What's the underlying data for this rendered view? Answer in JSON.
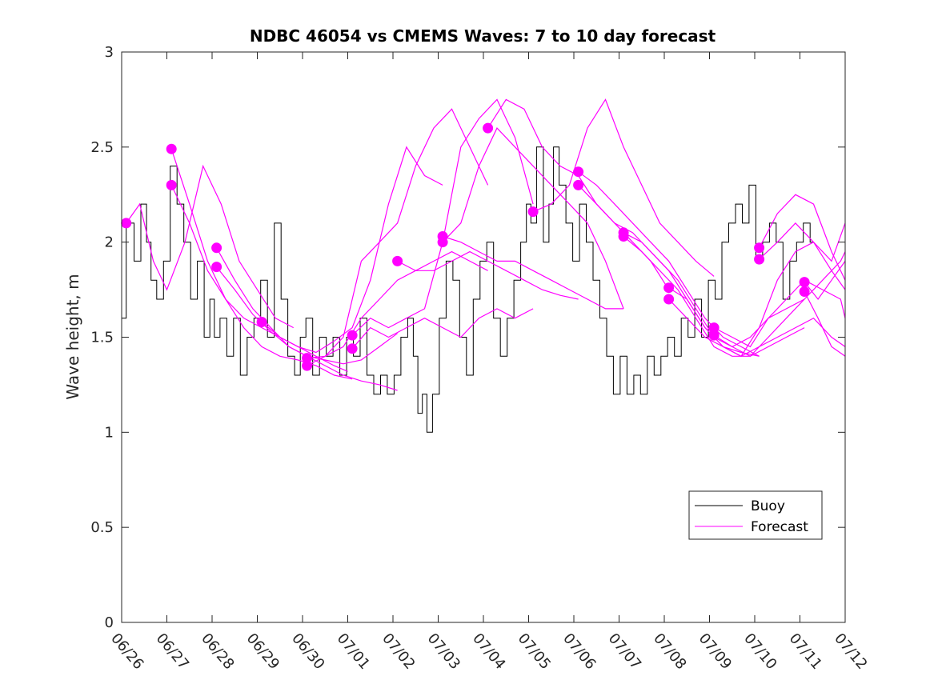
{
  "chart_data": {
    "type": "line",
    "title": "NDBC 46054 vs CMEMS Waves: 7 to 10 day forecast",
    "xlabel": "",
    "ylabel": "Wave height, m",
    "xlim": [
      0,
      16
    ],
    "ylim": [
      0,
      3
    ],
    "x_ticks": [
      "06/26",
      "06/27",
      "06/28",
      "06/29",
      "06/30",
      "07/01",
      "07/02",
      "07/03",
      "07/04",
      "07/05",
      "07/06",
      "07/07",
      "07/08",
      "07/09",
      "07/10",
      "07/11",
      "07/12"
    ],
    "y_ticks": [
      "0",
      "0.5",
      "1",
      "1.5",
      "2",
      "2.5",
      "3"
    ],
    "grid": false,
    "legend_position": "lower-right",
    "colors": {
      "buoy": "#000000",
      "forecast": "#ff00ff",
      "axis": "#262626"
    },
    "series": [
      {
        "name": "Buoy",
        "x": [
          0,
          0.2,
          0.35,
          0.5,
          0.6,
          0.7,
          0.85,
          1.0,
          1.15,
          1.3,
          1.45,
          1.6,
          1.75,
          1.9,
          2.0,
          2.1,
          2.25,
          2.4,
          2.55,
          2.7,
          2.85,
          3.0,
          3.15,
          3.3,
          3.45,
          3.6,
          3.75,
          3.9,
          4.0,
          4.15,
          4.3,
          4.45,
          4.6,
          4.75,
          4.9,
          5.05,
          5.2,
          5.35,
          5.5,
          5.65,
          5.8,
          5.95,
          6.1,
          6.25,
          6.4,
          6.5,
          6.6,
          6.7,
          6.8,
          6.95,
          7.1,
          7.25,
          7.4,
          7.55,
          7.7,
          7.85,
          8.0,
          8.15,
          8.3,
          8.45,
          8.6,
          8.75,
          8.9,
          9.0,
          9.1,
          9.25,
          9.4,
          9.5,
          9.6,
          9.75,
          9.9,
          10.05,
          10.2,
          10.35,
          10.5,
          10.65,
          10.8,
          10.95,
          11.1,
          11.25,
          11.4,
          11.55,
          11.7,
          11.85,
          12.0,
          12.15,
          12.3,
          12.45,
          12.6,
          12.75,
          12.9,
          13.05,
          13.2,
          13.35,
          13.5,
          13.65,
          13.8,
          13.95,
          14.1,
          14.25,
          14.4,
          14.55,
          14.7,
          14.85,
          15.0,
          15.15,
          15.3
        ],
        "y": [
          1.6,
          2.1,
          1.9,
          2.2,
          2.0,
          1.8,
          1.7,
          1.9,
          2.4,
          2.2,
          2.0,
          1.7,
          1.9,
          1.5,
          1.7,
          1.5,
          1.6,
          1.4,
          1.6,
          1.3,
          1.5,
          1.6,
          1.8,
          1.5,
          2.1,
          1.7,
          1.4,
          1.3,
          1.5,
          1.6,
          1.3,
          1.5,
          1.4,
          1.5,
          1.3,
          1.5,
          1.4,
          1.6,
          1.3,
          1.2,
          1.3,
          1.2,
          1.3,
          1.5,
          1.6,
          1.4,
          1.1,
          1.2,
          1.0,
          1.2,
          1.6,
          1.9,
          1.8,
          1.5,
          1.3,
          1.7,
          1.9,
          2.0,
          1.6,
          1.4,
          1.6,
          1.8,
          2.0,
          2.2,
          2.1,
          2.5,
          2.0,
          2.2,
          2.5,
          2.3,
          2.1,
          1.9,
          2.2,
          2.0,
          1.8,
          1.6,
          1.4,
          1.2,
          1.4,
          1.2,
          1.3,
          1.2,
          1.4,
          1.3,
          1.4,
          1.5,
          1.4,
          1.6,
          1.5,
          1.7,
          1.5,
          1.8,
          1.7,
          2.0,
          2.1,
          2.2,
          2.1,
          2.3,
          1.9,
          2.0,
          2.1,
          2.0,
          1.7,
          1.9,
          2.0,
          2.1,
          2.0
        ]
      },
      {
        "name": "Forecast",
        "segments": [
          {
            "x": [
              0.1,
              0.4,
              0.7,
              1.0,
              1.4,
              1.8,
              2.2,
              2.6,
              3.0,
              3.4,
              3.8
            ],
            "y": [
              2.1,
              2.2,
              1.9,
              1.75,
              2.0,
              2.4,
              2.2,
              1.9,
              1.75,
              1.6,
              1.55
            ]
          },
          {
            "x": [
              1.1,
              1.5,
              1.9,
              2.3,
              2.7,
              3.1,
              3.5,
              3.9,
              4.3,
              4.7,
              5.0
            ],
            "y": [
              2.49,
              2.2,
              1.9,
              1.7,
              1.6,
              1.55,
              1.5,
              1.45,
              1.4,
              1.35,
              1.32
            ]
          },
          {
            "x": [
              1.1,
              1.5,
              1.9,
              2.3,
              2.7,
              3.1,
              3.5,
              3.9,
              4.3,
              4.7,
              5.1
            ],
            "y": [
              2.3,
              2.1,
              1.85,
              1.7,
              1.55,
              1.45,
              1.4,
              1.38,
              1.35,
              1.3,
              1.28
            ]
          },
          {
            "x": [
              2.1,
              2.5,
              2.9,
              3.3,
              3.7,
              4.1,
              4.5,
              4.9,
              5.3,
              5.7,
              6.1
            ],
            "y": [
              1.97,
              1.8,
              1.65,
              1.55,
              1.45,
              1.4,
              1.35,
              1.3,
              1.27,
              1.25,
              1.22
            ]
          },
          {
            "x": [
              2.1,
              2.5,
              2.9,
              3.3,
              3.7,
              4.1,
              4.5,
              4.9,
              5.3,
              5.7,
              6.1
            ],
            "y": [
              1.87,
              1.75,
              1.62,
              1.53,
              1.45,
              1.4,
              1.38,
              1.36,
              1.38,
              1.45,
              1.52
            ]
          },
          {
            "x": [
              3.1,
              3.5,
              3.9,
              4.3,
              4.7,
              5.1,
              5.5,
              5.9,
              6.3,
              6.7,
              7.1
            ],
            "y": [
              1.58,
              1.5,
              1.45,
              1.42,
              1.48,
              1.55,
              1.8,
              2.2,
              2.5,
              2.35,
              2.3
            ]
          },
          {
            "x": [
              4.1,
              4.5,
              4.9,
              5.3,
              5.7,
              6.1,
              6.5,
              6.9,
              7.3,
              7.7,
              8.1
            ],
            "y": [
              1.39,
              1.4,
              1.5,
              1.9,
              2.0,
              2.1,
              2.4,
              2.6,
              2.7,
              2.5,
              2.3
            ]
          },
          {
            "x": [
              4.1,
              4.5,
              4.9,
              5.3,
              5.7,
              6.1,
              6.5,
              6.9,
              7.3,
              7.7,
              8.1
            ],
            "y": [
              1.35,
              1.4,
              1.45,
              1.6,
              1.7,
              1.8,
              1.85,
              1.9,
              1.95,
              1.9,
              1.85
            ]
          },
          {
            "x": [
              5.1,
              5.5,
              5.9,
              6.3,
              6.7,
              7.1,
              7.5,
              7.9,
              8.3,
              8.7,
              9.1
            ],
            "y": [
              1.51,
              1.6,
              1.55,
              1.6,
              1.65,
              2.0,
              2.5,
              2.65,
              2.75,
              2.55,
              2.2
            ]
          },
          {
            "x": [
              5.1,
              5.5,
              5.9,
              6.3,
              6.7,
              7.1,
              7.5,
              7.9,
              8.3,
              8.7,
              9.1
            ],
            "y": [
              1.44,
              1.55,
              1.5,
              1.55,
              1.6,
              1.55,
              1.5,
              1.6,
              1.65,
              1.6,
              1.65
            ]
          },
          {
            "x": [
              6.1,
              6.5,
              6.9,
              7.3,
              7.7,
              8.1,
              8.5,
              8.9,
              9.3,
              9.7,
              10.1
            ],
            "y": [
              1.9,
              1.85,
              1.85,
              1.9,
              1.95,
              1.9,
              1.85,
              1.8,
              1.75,
              1.72,
              1.7
            ]
          },
          {
            "x": [
              7.1,
              7.5,
              7.9,
              8.3,
              8.7,
              9.1,
              9.5,
              9.9,
              10.3,
              10.7,
              11.1
            ],
            "y": [
              2.03,
              2.0,
              1.95,
              1.9,
              1.9,
              1.85,
              1.8,
              1.75,
              1.7,
              1.65,
              1.65
            ]
          },
          {
            "x": [
              7.1,
              7.5,
              7.9,
              8.3,
              8.7,
              9.1,
              9.5,
              9.9,
              10.3,
              10.7,
              11.1
            ],
            "y": [
              2.0,
              2.1,
              2.4,
              2.6,
              2.5,
              2.4,
              2.3,
              2.2,
              2.1,
              1.9,
              1.65
            ]
          },
          {
            "x": [
              8.1,
              8.5,
              8.9,
              9.3,
              9.7,
              10.1,
              10.5,
              10.9,
              11.3,
              11.7,
              12.1
            ],
            "y": [
              2.6,
              2.75,
              2.7,
              2.5,
              2.4,
              2.35,
              2.2,
              2.1,
              2.0,
              1.9,
              1.75
            ]
          },
          {
            "x": [
              9.1,
              9.5,
              9.9,
              10.3,
              10.7,
              11.1,
              11.5,
              11.9,
              12.3,
              12.7,
              13.1
            ],
            "y": [
              2.16,
              2.2,
              2.3,
              2.6,
              2.75,
              2.5,
              2.3,
              2.1,
              2.0,
              1.9,
              1.82
            ]
          },
          {
            "x": [
              10.1,
              10.5,
              10.9,
              11.3,
              11.7,
              12.1,
              12.5,
              12.9,
              13.3,
              13.7,
              14.1
            ],
            "y": [
              2.37,
              2.3,
              2.2,
              2.1,
              2.0,
              1.9,
              1.75,
              1.6,
              1.5,
              1.45,
              1.4
            ]
          },
          {
            "x": [
              10.1,
              10.5,
              10.9,
              11.3,
              11.7,
              12.1,
              12.5,
              12.9,
              13.3,
              13.7,
              14.1
            ],
            "y": [
              2.3,
              2.2,
              2.1,
              2.05,
              1.95,
              1.85,
              1.7,
              1.55,
              1.45,
              1.42,
              1.4
            ]
          },
          {
            "x": [
              11.1,
              11.5,
              11.9,
              12.3,
              12.7,
              13.1,
              13.5,
              13.9,
              14.3,
              14.7,
              15.1
            ],
            "y": [
              2.05,
              2.0,
              1.9,
              1.8,
              1.65,
              1.5,
              1.45,
              1.5,
              1.6,
              1.65,
              1.7
            ]
          },
          {
            "x": [
              11.1,
              11.5,
              11.9,
              12.3,
              12.7,
              13.1,
              13.5,
              13.9,
              14.3,
              14.7,
              15.1
            ],
            "y": [
              2.03,
              1.95,
              1.85,
              1.75,
              1.6,
              1.45,
              1.4,
              1.4,
              1.45,
              1.5,
              1.55
            ]
          },
          {
            "x": [
              12.1,
              12.5,
              12.9,
              13.3,
              13.7,
              14.1,
              14.5,
              14.9,
              15.3,
              15.7,
              16.0
            ],
            "y": [
              1.76,
              1.7,
              1.55,
              1.45,
              1.4,
              1.55,
              1.8,
              1.95,
              2.0,
              1.85,
              1.75
            ]
          },
          {
            "x": [
              12.1,
              12.5,
              12.9,
              13.3,
              13.7,
              14.1,
              14.5,
              14.9,
              15.3,
              15.7,
              16.0
            ],
            "y": [
              1.7,
              1.6,
              1.5,
              1.45,
              1.4,
              1.45,
              1.5,
              1.55,
              1.6,
              1.5,
              1.45
            ]
          },
          {
            "x": [
              13.1,
              13.5,
              13.9,
              14.3,
              14.7,
              15.1,
              15.5,
              15.9,
              16.0
            ],
            "y": [
              1.55,
              1.5,
              1.45,
              1.6,
              1.7,
              1.8,
              1.75,
              1.7,
              1.6
            ]
          },
          {
            "x": [
              13.1,
              13.5,
              13.9,
              14.3,
              14.7,
              15.1,
              15.5,
              15.9,
              16.0
            ],
            "y": [
              1.51,
              1.45,
              1.4,
              1.5,
              1.6,
              1.7,
              1.8,
              1.9,
              1.95
            ]
          },
          {
            "x": [
              14.1,
              14.5,
              14.9,
              15.3,
              15.7,
              16.0
            ],
            "y": [
              1.97,
              2.15,
              2.25,
              2.2,
              1.95,
              1.8
            ]
          },
          {
            "x": [
              14.1,
              14.5,
              14.9,
              15.3,
              15.7,
              16.0
            ],
            "y": [
              1.91,
              2.0,
              2.1,
              2.0,
              1.9,
              2.1
            ]
          },
          {
            "x": [
              15.1,
              15.4,
              15.7,
              16.0
            ],
            "y": [
              1.79,
              1.7,
              1.8,
              1.9
            ]
          },
          {
            "x": [
              15.1,
              15.4,
              15.7,
              16.0
            ],
            "y": [
              1.74,
              1.6,
              1.45,
              1.4
            ]
          }
        ],
        "markers": {
          "x": [
            0.1,
            1.1,
            1.1,
            2.1,
            2.1,
            3.1,
            4.1,
            4.1,
            5.1,
            5.1,
            6.1,
            7.1,
            7.1,
            8.1,
            9.1,
            10.1,
            10.1,
            11.1,
            11.1,
            12.1,
            12.1,
            13.1,
            13.1,
            14.1,
            14.1,
            15.1,
            15.1
          ],
          "y": [
            2.1,
            2.49,
            2.3,
            1.97,
            1.87,
            1.58,
            1.39,
            1.35,
            1.51,
            1.44,
            1.9,
            2.03,
            2.0,
            2.6,
            2.16,
            2.37,
            2.3,
            2.05,
            2.03,
            1.76,
            1.7,
            1.55,
            1.51,
            1.97,
            1.91,
            1.79,
            1.74
          ]
        }
      }
    ]
  }
}
